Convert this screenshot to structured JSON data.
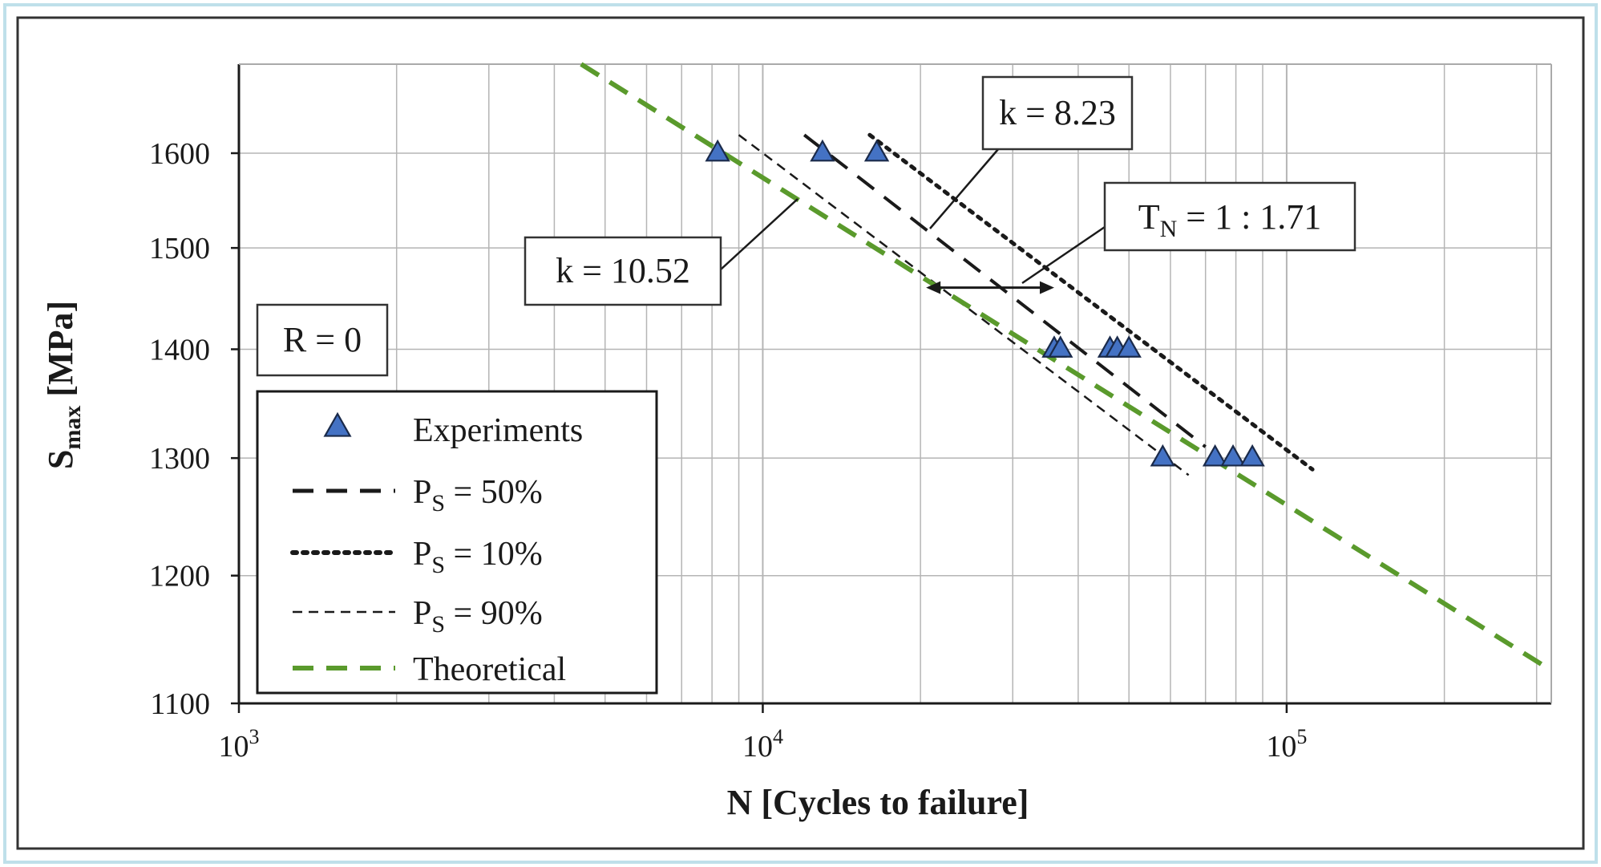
{
  "chart_data": {
    "type": "scatter",
    "title": "",
    "xlabel": "N [Cycles to failure]",
    "ylabel": "S",
    "ylabel_sub": "max",
    "ylabel_unit": " [MPa]",
    "xscale": "log",
    "yscale": "log",
    "xlim": [
      1000,
      320000
    ],
    "ylim": [
      1100,
      1700
    ],
    "grid": true,
    "x_ticks": [
      {
        "value": 1000,
        "base": "10",
        "exp": "3"
      },
      {
        "value": 10000,
        "base": "10",
        "exp": "4"
      },
      {
        "value": 100000,
        "base": "10",
        "exp": "5"
      }
    ],
    "y_ticks": [
      {
        "value": 1100,
        "label": "1100"
      },
      {
        "value": 1200,
        "label": "1200"
      },
      {
        "value": 1300,
        "label": "1300"
      },
      {
        "value": 1400,
        "label": "1400"
      },
      {
        "value": 1500,
        "label": "1500"
      },
      {
        "value": 1600,
        "label": "1600"
      }
    ],
    "experiments": {
      "name": "Experiments",
      "color": "#4472c4",
      "points": [
        {
          "x": 8200,
          "y": 1600
        },
        {
          "x": 13000,
          "y": 1600
        },
        {
          "x": 16500,
          "y": 1600
        },
        {
          "x": 36000,
          "y": 1400
        },
        {
          "x": 37000,
          "y": 1400
        },
        {
          "x": 46000,
          "y": 1400
        },
        {
          "x": 47500,
          "y": 1400
        },
        {
          "x": 50000,
          "y": 1400
        },
        {
          "x": 58000,
          "y": 1300
        },
        {
          "x": 73000,
          "y": 1300
        },
        {
          "x": 79000,
          "y": 1300
        },
        {
          "x": 86000,
          "y": 1300
        }
      ]
    },
    "series": [
      {
        "name": "P_S = 50%",
        "style": "dashed",
        "color": "#1a1a1a",
        "x": [
          12000,
          70000
        ],
        "y": [
          1620,
          1310
        ]
      },
      {
        "name": "P_S = 10%",
        "style": "dotted",
        "color": "#1a1a1a",
        "x": [
          16000,
          112000
        ],
        "y": [
          1620,
          1290
        ]
      },
      {
        "name": "P_S = 90%",
        "style": "fine-dashed",
        "color": "#1a1a1a",
        "x": [
          9000,
          65000
        ],
        "y": [
          1620,
          1285
        ]
      },
      {
        "name": "Theoretical",
        "style": "dashed",
        "color": "#5a9a2c",
        "x": [
          4500,
          320000
        ],
        "y": [
          1700,
          1125
        ]
      }
    ],
    "annotations": {
      "k_upper": "k = 8.23",
      "k_lower": "k = 10.52",
      "tn": {
        "main": "T",
        "sub": "N",
        "rest": " = 1 : 1.71"
      },
      "tn_arrow": {
        "x_from": 20500,
        "x_to": 36000,
        "y": 1460
      },
      "r_label": "R = 0"
    },
    "legend": {
      "position": "lower-left",
      "items": [
        {
          "type": "marker",
          "label": "Experiments"
        },
        {
          "type": "line",
          "label_main": "P",
          "label_sub": "S",
          "label_rest": " = 50%",
          "style": "dashed",
          "color": "#1a1a1a"
        },
        {
          "type": "line",
          "label_main": "P",
          "label_sub": "S",
          "label_rest": " = 10%",
          "style": "dotted",
          "color": "#1a1a1a"
        },
        {
          "type": "line",
          "label_main": "P",
          "label_sub": "S",
          "label_rest": " = 90%",
          "style": "fine-dashed",
          "color": "#1a1a1a"
        },
        {
          "type": "line",
          "label": "Theoretical",
          "style": "dashed",
          "color": "#5a9a2c"
        }
      ]
    }
  }
}
